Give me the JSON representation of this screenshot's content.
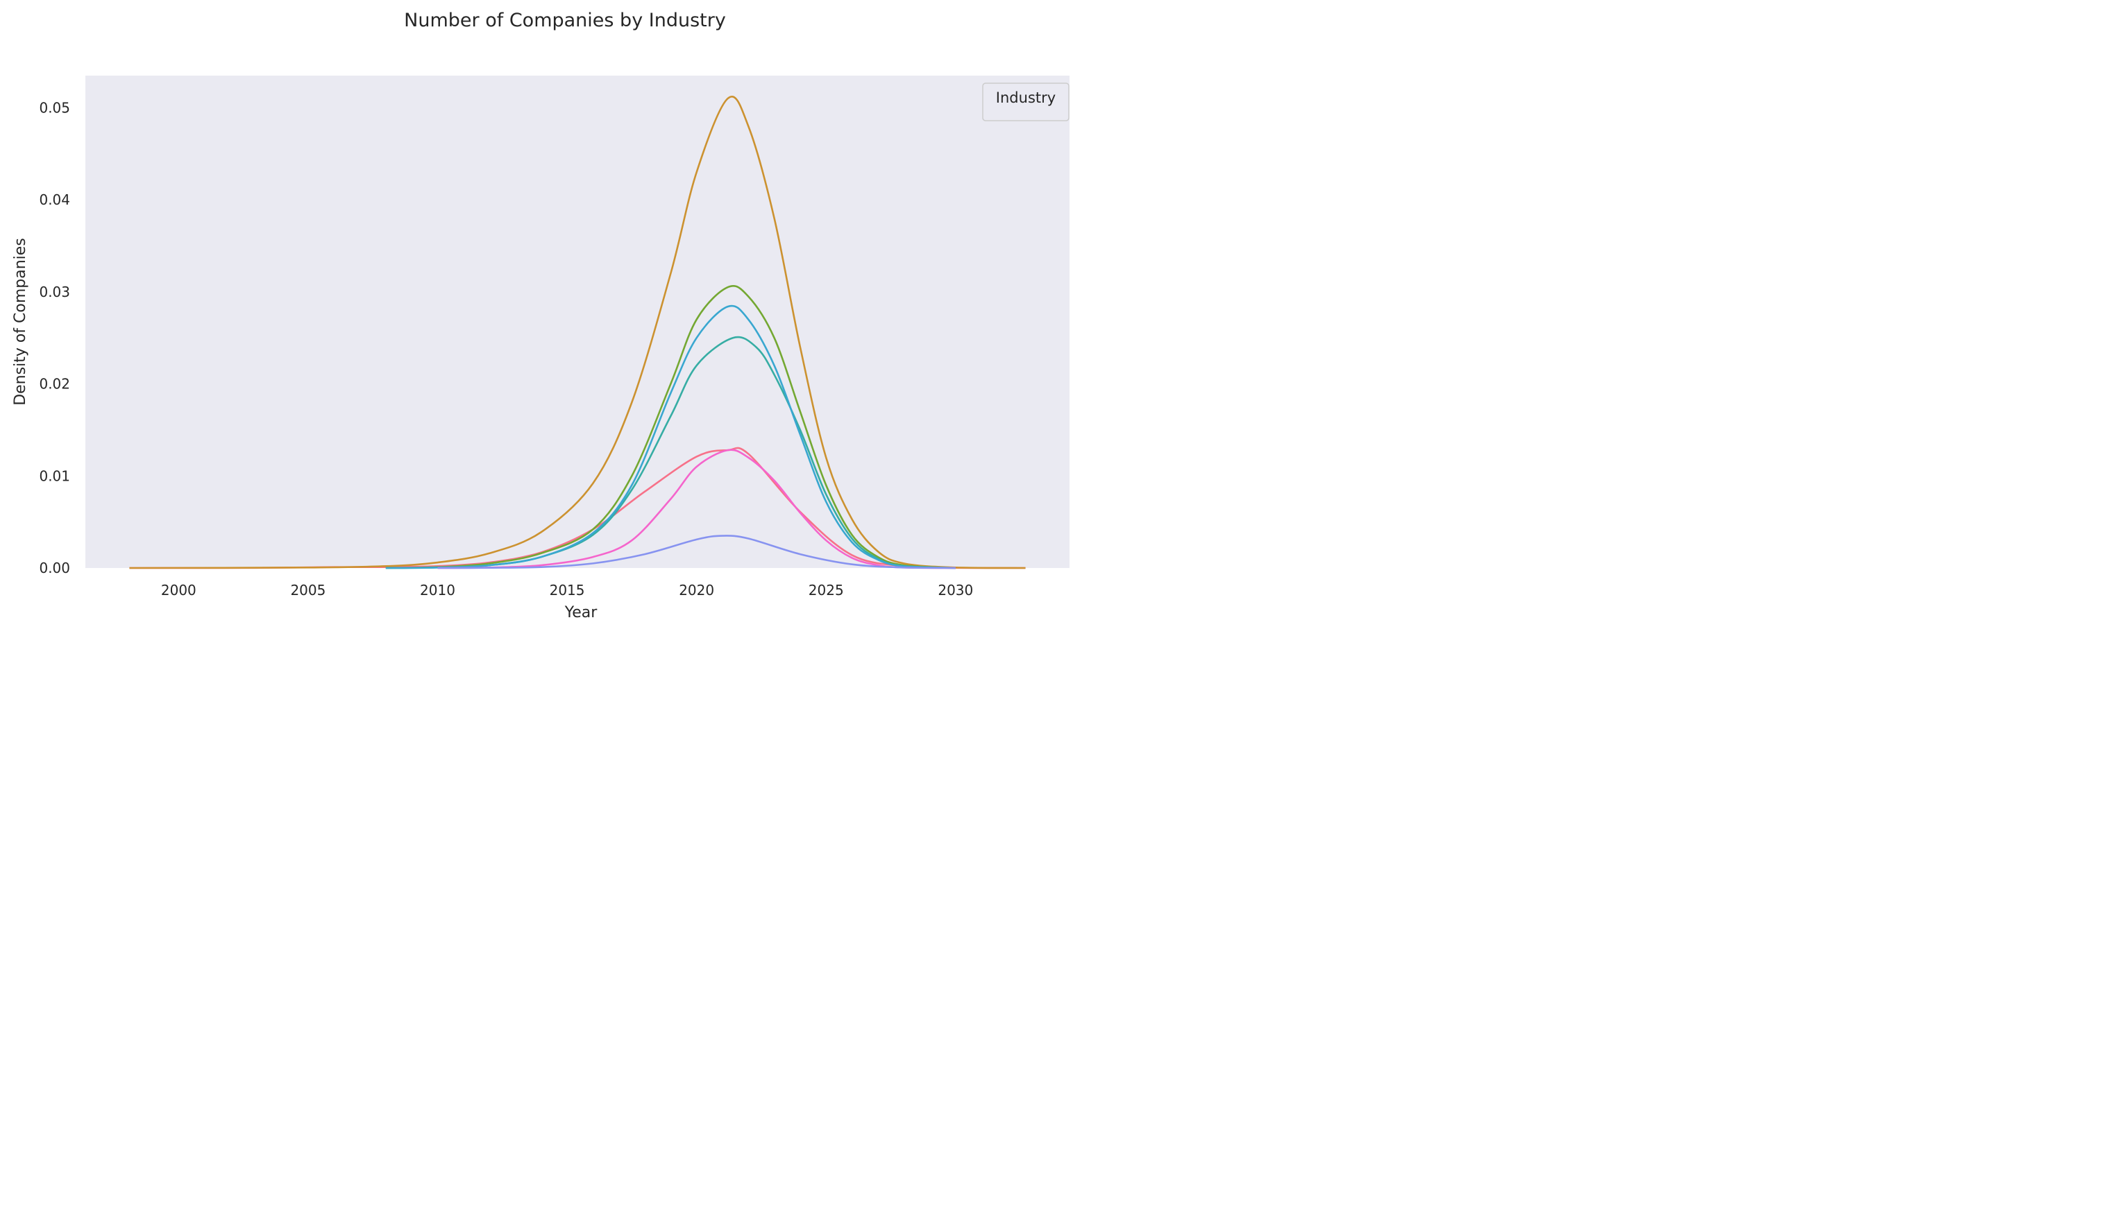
{
  "chart_data": {
    "type": "line",
    "title": "Number of Companies by Industry",
    "xlabel": "Year",
    "ylabel": "Density of Companies",
    "xlim": [
      1996.4,
      2034.4
    ],
    "ylim": [
      0,
      0.0535
    ],
    "xticks": [
      2000,
      2005,
      2010,
      2015,
      2020,
      2025,
      2030
    ],
    "yticks": [
      0.0,
      0.01,
      0.02,
      0.03,
      0.04,
      0.05
    ],
    "ytick_labels": [
      "0.00",
      "0.01",
      "0.02",
      "0.03",
      "0.04",
      "0.05"
    ],
    "legend": {
      "title": "Industry",
      "position": "top-right"
    },
    "grid": false,
    "background": "#eaeaf2",
    "series": [
      {
        "color": "#f77189",
        "x": [
          1998.1,
          2003,
          2006,
          2008,
          2010,
          2012,
          2014,
          2016,
          2018,
          2020,
          2021.2,
          2022,
          2024,
          2026,
          2028,
          2030,
          2032.7
        ],
        "values": [
          0.0,
          1e-05,
          0.0001,
          0.0001,
          0.0002,
          0.0006,
          0.0017,
          0.0042,
          0.0083,
          0.0121,
          0.0128,
          0.0124,
          0.0061,
          0.0014,
          0.0002,
          1e-05,
          0.0
        ]
      },
      {
        "color": "#cc9230",
        "x": [
          1998.1,
          2005,
          2008,
          2010,
          2012,
          2014,
          2016,
          2017.5,
          2019,
          2020,
          2021.2,
          2022,
          2023,
          2024,
          2025,
          2026,
          2027,
          2028,
          2030,
          2032.7
        ],
        "values": [
          0.0,
          5e-05,
          0.0002,
          0.0006,
          0.0016,
          0.0039,
          0.0092,
          0.018,
          0.032,
          0.043,
          0.051,
          0.048,
          0.038,
          0.024,
          0.012,
          0.0053,
          0.0018,
          0.0005,
          5e-05,
          0.0
        ]
      },
      {
        "color": "#74a832",
        "x": [
          2008,
          2010,
          2012,
          2014,
          2016,
          2017.5,
          2019,
          2020,
          2021.2,
          2022,
          2023,
          2024,
          2025,
          2026,
          2027,
          2028,
          2030
        ],
        "values": [
          0.0,
          0.0001,
          0.0005,
          0.0016,
          0.0042,
          0.01,
          0.02,
          0.027,
          0.0305,
          0.0295,
          0.025,
          0.017,
          0.009,
          0.0036,
          0.0012,
          0.0003,
          0.0
        ]
      },
      {
        "color": "#36ada4",
        "x": [
          2008,
          2010,
          2012,
          2014,
          2016,
          2017.5,
          2019,
          2020,
          2021.4,
          2022.3,
          2023,
          2024,
          2025,
          2026,
          2027,
          2028,
          2030
        ],
        "values": [
          0.0,
          5e-05,
          0.0003,
          0.0012,
          0.0036,
          0.0085,
          0.0165,
          0.022,
          0.025,
          0.024,
          0.021,
          0.015,
          0.008,
          0.0032,
          0.001,
          0.0002,
          0.0
        ]
      },
      {
        "color": "#39a7d0",
        "x": [
          2008,
          2010,
          2012,
          2014,
          2016,
          2017.5,
          2019,
          2020,
          2021.2,
          2022,
          2023,
          2024,
          2025,
          2026,
          2027,
          2028,
          2030
        ],
        "values": [
          0.0,
          5e-05,
          0.0003,
          0.0012,
          0.0038,
          0.009,
          0.019,
          0.025,
          0.0284,
          0.027,
          0.022,
          0.0145,
          0.0072,
          0.0028,
          0.0009,
          0.0002,
          0.0
        ]
      },
      {
        "color": "#f565cc",
        "x": [
          2010,
          2012,
          2014,
          2016,
          2017.5,
          2019,
          2020,
          2021.2,
          2022,
          2023,
          2024,
          2025,
          2026,
          2027,
          2028,
          2030
        ],
        "values": [
          0.0,
          5e-05,
          0.0003,
          0.0012,
          0.003,
          0.0075,
          0.011,
          0.0128,
          0.012,
          0.0095,
          0.006,
          0.003,
          0.0011,
          0.0003,
          5e-05,
          0.0
        ]
      },
      {
        "color": "#8793f0",
        "x": [
          2010,
          2012,
          2014,
          2016,
          2018,
          2020,
          2021.0,
          2022,
          2024,
          2026,
          2028,
          2030
        ],
        "values": [
          0.0,
          2e-05,
          0.0001,
          0.0005,
          0.0015,
          0.0031,
          0.0035,
          0.0032,
          0.0015,
          0.0004,
          5e-05,
          0.0
        ]
      }
    ]
  }
}
